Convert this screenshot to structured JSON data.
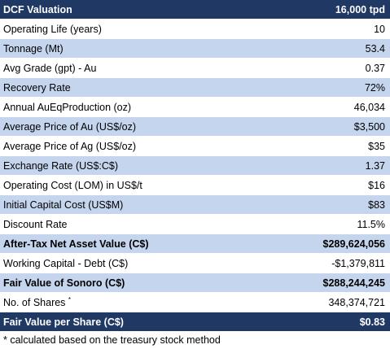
{
  "table": {
    "header": {
      "label": "DCF Valuation",
      "value": "16,000 tpd"
    },
    "rows": [
      {
        "label": "Operating Life (years)",
        "value": "10"
      },
      {
        "label": "Tonnage (Mt)",
        "value": "53.4"
      },
      {
        "label": "Avg Grade  (gpt) - Au",
        "value": "0.37"
      },
      {
        "label": "Recovery Rate",
        "value": "72%"
      },
      {
        "label": "Annual AuEqProduction (oz)",
        "value": "46,034"
      },
      {
        "label": "Average Price of Au (US$/oz)",
        "value": "$3,500"
      },
      {
        "label": "Average Price of Ag (US$/oz)",
        "value": "$35"
      },
      {
        "label": "Exchange Rate (US$:C$)",
        "value": "1.37"
      },
      {
        "label": "Operating Cost (LOM) in US$/t",
        "value": "$16"
      },
      {
        "label": "Initial Capital Cost (US$M)",
        "value": "$83"
      },
      {
        "label": "Discount Rate",
        "value": "11.5%"
      },
      {
        "label": "After-Tax Net Asset Value (C$)",
        "value": "$289,624,056"
      },
      {
        "label": "Working Capital - Debt (C$)",
        "value": "-$1,379,811"
      },
      {
        "label": "Fair Value of Sonoro (C$)",
        "value": "$288,244,245"
      },
      {
        "label": "No. of Shares",
        "marker": "*",
        "value": "348,374,721"
      }
    ],
    "footer": {
      "label": "Fair Value per Share (C$)",
      "value": "$0.83"
    }
  },
  "footnote": "* calculated based on the treasury stock method",
  "colors": {
    "header_bg": "#1f3864",
    "band_blue": "#c6d5ee",
    "band_white": "#ffffff"
  }
}
